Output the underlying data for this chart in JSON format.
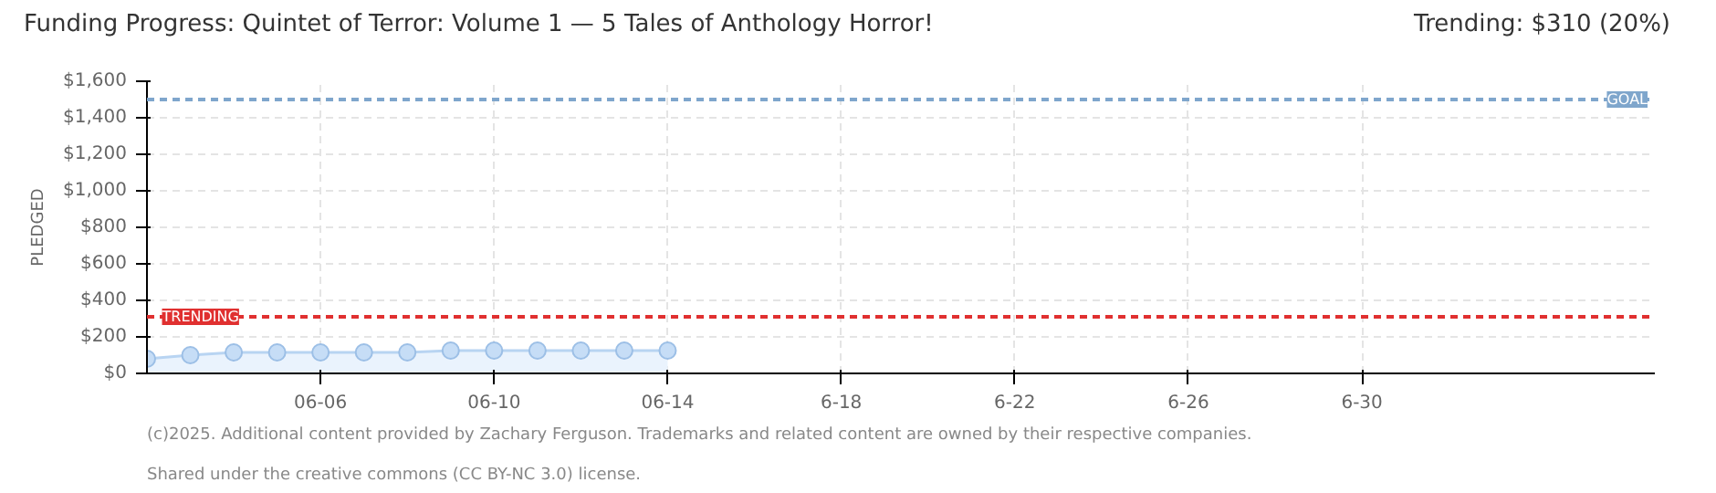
{
  "chart_data": {
    "type": "area",
    "title": "Funding Progress: Quintet of Terror: Volume 1 — 5 Tales of Anthology Horror!",
    "subtitle": "Trending:  $310 (20%)",
    "ylabel": "PLEDGED",
    "x": [
      "2025-06-02",
      "2025-06-03",
      "2025-06-04",
      "2025-06-05",
      "2025-06-06",
      "2025-06-07",
      "2025-06-08",
      "2025-06-09",
      "2025-06-10",
      "2025-06-11",
      "2025-06-12",
      "2025-06-13",
      "2025-06-14"
    ],
    "series": [
      {
        "color": "#b8d4f2",
        "values": [
          80,
          100,
          115,
          115,
          115,
          115,
          115,
          125,
          125,
          125,
          125,
          125,
          125
        ]
      }
    ],
    "marker": "circle",
    "grid": true,
    "xlim": [
      "2025-06-02",
      "2025-07-06T18:00"
    ],
    "xticks": [
      {
        "value": "2025-06-06",
        "label": "06-06"
      },
      {
        "value": "2025-06-10",
        "label": "06-10"
      },
      {
        "value": "2025-06-14",
        "label": "06-14"
      },
      {
        "value": "2025-06-18",
        "label": "6-18"
      },
      {
        "value": "2025-06-22",
        "label": "6-22"
      },
      {
        "value": "2025-06-26",
        "label": "6-26"
      },
      {
        "value": "2025-06-30",
        "label": "6-30"
      }
    ],
    "ylim": [
      0,
      1600
    ],
    "yticks": [
      {
        "value": 0,
        "label": "$0"
      },
      {
        "value": 200,
        "label": "$200"
      },
      {
        "value": 400,
        "label": "$400"
      },
      {
        "value": 600,
        "label": "$600"
      },
      {
        "value": 800,
        "label": "$800"
      },
      {
        "value": 1000,
        "label": "$1,000"
      },
      {
        "value": 1200,
        "label": "$1,200"
      },
      {
        "value": 1400,
        "label": "$1,400"
      },
      {
        "value": 1600,
        "label": "$1,600"
      }
    ],
    "ref_lines": [
      {
        "axis": "y",
        "value": 1500,
        "label": "GOAL",
        "color": "#7fa6cc",
        "line_style": "dashed"
      },
      {
        "axis": "y",
        "value": 310,
        "label": "TRENDING",
        "color": "#e03030",
        "line_style": "dashed"
      }
    ],
    "annotations": [
      "(c)2025. Additional content provided by Zachary Ferguson. Trademarks and related content are owned by their respective companies.",
      "Shared under the creative commons (CC BY-NC 3.0) license."
    ]
  }
}
